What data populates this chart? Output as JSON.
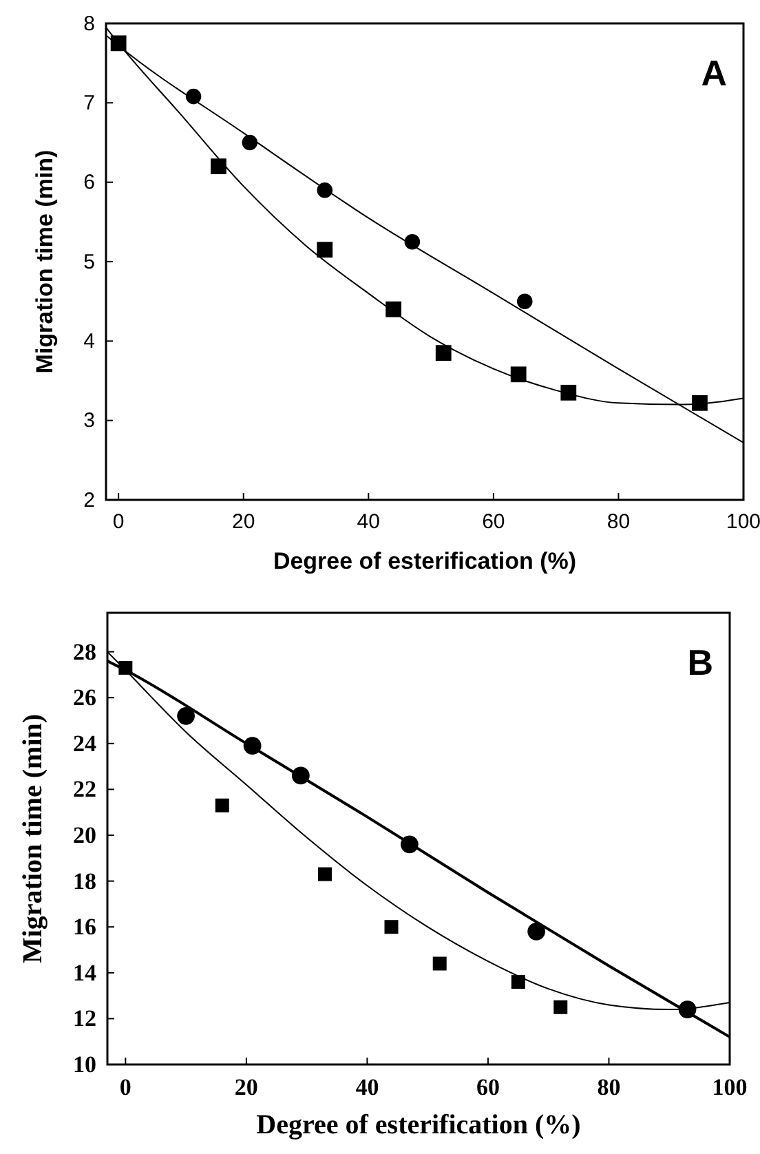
{
  "chart_data": [
    {
      "type": "scatter",
      "xlabel": "Degree of esterification (%)",
      "ylabel": "Migration time (min)",
      "annotations": [
        "A"
      ],
      "xlim": [
        -2,
        100
      ],
      "ylim": [
        2,
        8
      ],
      "xticks": [
        0,
        20,
        40,
        60,
        80,
        100
      ],
      "yticks": [
        2,
        3,
        4,
        5,
        6,
        7,
        8
      ],
      "grid": false,
      "series": [
        {
          "type": "line",
          "color": "#000000",
          "x": [
            -2,
            0,
            20,
            40,
            60,
            80,
            100
          ],
          "values": [
            7.85,
            7.72,
            6.62,
            5.55,
            4.6,
            3.65,
            2.72
          ]
        },
        {
          "type": "line",
          "color": "#000000",
          "x": [
            -2,
            0,
            10,
            20,
            30,
            40,
            50,
            60,
            70,
            80,
            90,
            100
          ],
          "values": [
            7.95,
            7.75,
            6.85,
            5.95,
            5.2,
            4.6,
            4.05,
            3.65,
            3.38,
            3.22,
            3.2,
            3.28
          ]
        },
        {
          "type": "scatter",
          "color": "#000000",
          "marker": "circle",
          "x": [
            12,
            21,
            33,
            47,
            65
          ],
          "values": [
            7.08,
            6.5,
            5.9,
            5.25,
            4.5
          ]
        },
        {
          "type": "scatter",
          "color": "#000000",
          "marker": "square",
          "x": [
            0,
            16,
            33,
            44,
            52,
            64,
            72,
            93
          ],
          "values": [
            7.75,
            6.2,
            5.15,
            4.4,
            3.85,
            3.58,
            3.35,
            3.22
          ]
        }
      ]
    },
    {
      "type": "scatter",
      "xlabel": "Degree of esterification  (%)",
      "ylabel": "Migration time (min)",
      "annotations": [
        "B"
      ],
      "xlim": [
        -3,
        100
      ],
      "ylim": [
        10,
        29.7
      ],
      "xticks": [
        0,
        20,
        40,
        60,
        80,
        100
      ],
      "yticks": [
        10,
        12,
        14,
        16,
        18,
        20,
        22,
        24,
        26,
        28
      ],
      "grid": false,
      "series": [
        {
          "type": "line",
          "color": "#000000",
          "x": [
            -3,
            0,
            20,
            40,
            60,
            80,
            100
          ],
          "values": [
            27.6,
            27.2,
            24.0,
            20.8,
            17.5,
            14.3,
            11.2
          ]
        },
        {
          "type": "line",
          "color": "#000000",
          "x": [
            -3,
            0,
            10,
            20,
            30,
            40,
            50,
            60,
            70,
            80,
            90,
            100
          ],
          "values": [
            28.0,
            27.2,
            24.5,
            22.2,
            19.9,
            17.8,
            16.0,
            14.5,
            13.3,
            12.6,
            12.4,
            12.7
          ]
        },
        {
          "type": "scatter",
          "color": "#000000",
          "marker": "circle",
          "x": [
            10,
            21,
            29,
            47,
            68,
            93
          ],
          "values": [
            25.2,
            23.9,
            22.6,
            19.6,
            15.8,
            12.4
          ]
        },
        {
          "type": "scatter",
          "color": "#000000",
          "marker": "square",
          "x": [
            0,
            16,
            33,
            44,
            52,
            65,
            72
          ],
          "values": [
            27.3,
            21.3,
            18.3,
            16.0,
            14.4,
            13.6,
            12.5
          ]
        }
      ]
    }
  ]
}
